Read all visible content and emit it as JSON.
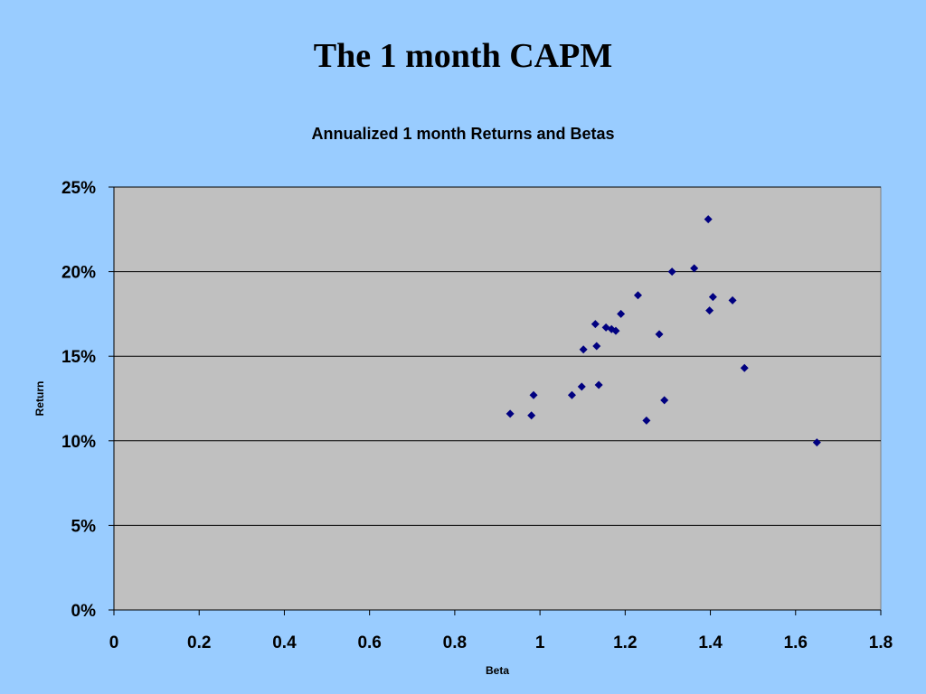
{
  "slide": {
    "title": "The 1 month CAPM"
  },
  "chart_data": {
    "type": "scatter",
    "title": "Annualized 1 month Returns and Betas",
    "xlabel": "Beta",
    "ylabel": "Return",
    "xlim": [
      0,
      1.8
    ],
    "ylim": [
      0,
      0.25
    ],
    "x_ticks": [
      0,
      0.2,
      0.4,
      0.6,
      0.8,
      1,
      1.2,
      1.4,
      1.6,
      1.8
    ],
    "x_tick_labels": [
      "0",
      "0.2",
      "0.4",
      "0.6",
      "0.8",
      "1",
      "1.2",
      "1.4",
      "1.6",
      "1.8"
    ],
    "y_ticks": [
      0,
      0.05,
      0.1,
      0.15,
      0.2,
      0.25
    ],
    "y_tick_labels": [
      "0%",
      "5%",
      "10%",
      "15%",
      "20%",
      "25%"
    ],
    "grid": "horizontal",
    "legend": "none",
    "colors": {
      "plot_background": "#c0c0c0",
      "marker": "#000080",
      "gridline": "#000000"
    },
    "points": [
      {
        "x": 0.93,
        "y": 0.116
      },
      {
        "x": 0.98,
        "y": 0.115
      },
      {
        "x": 0.985,
        "y": 0.127
      },
      {
        "x": 1.075,
        "y": 0.127
      },
      {
        "x": 1.098,
        "y": 0.132
      },
      {
        "x": 1.102,
        "y": 0.154
      },
      {
        "x": 1.13,
        "y": 0.169
      },
      {
        "x": 1.133,
        "y": 0.156
      },
      {
        "x": 1.138,
        "y": 0.133
      },
      {
        "x": 1.155,
        "y": 0.167
      },
      {
        "x": 1.168,
        "y": 0.166
      },
      {
        "x": 1.178,
        "y": 0.165
      },
      {
        "x": 1.19,
        "y": 0.175
      },
      {
        "x": 1.23,
        "y": 0.186
      },
      {
        "x": 1.25,
        "y": 0.112
      },
      {
        "x": 1.28,
        "y": 0.163
      },
      {
        "x": 1.292,
        "y": 0.124
      },
      {
        "x": 1.31,
        "y": 0.2
      },
      {
        "x": 1.362,
        "y": 0.202
      },
      {
        "x": 1.395,
        "y": 0.231
      },
      {
        "x": 1.398,
        "y": 0.177
      },
      {
        "x": 1.406,
        "y": 0.185
      },
      {
        "x": 1.452,
        "y": 0.183
      },
      {
        "x": 1.48,
        "y": 0.143
      },
      {
        "x": 1.65,
        "y": 0.099
      }
    ]
  }
}
